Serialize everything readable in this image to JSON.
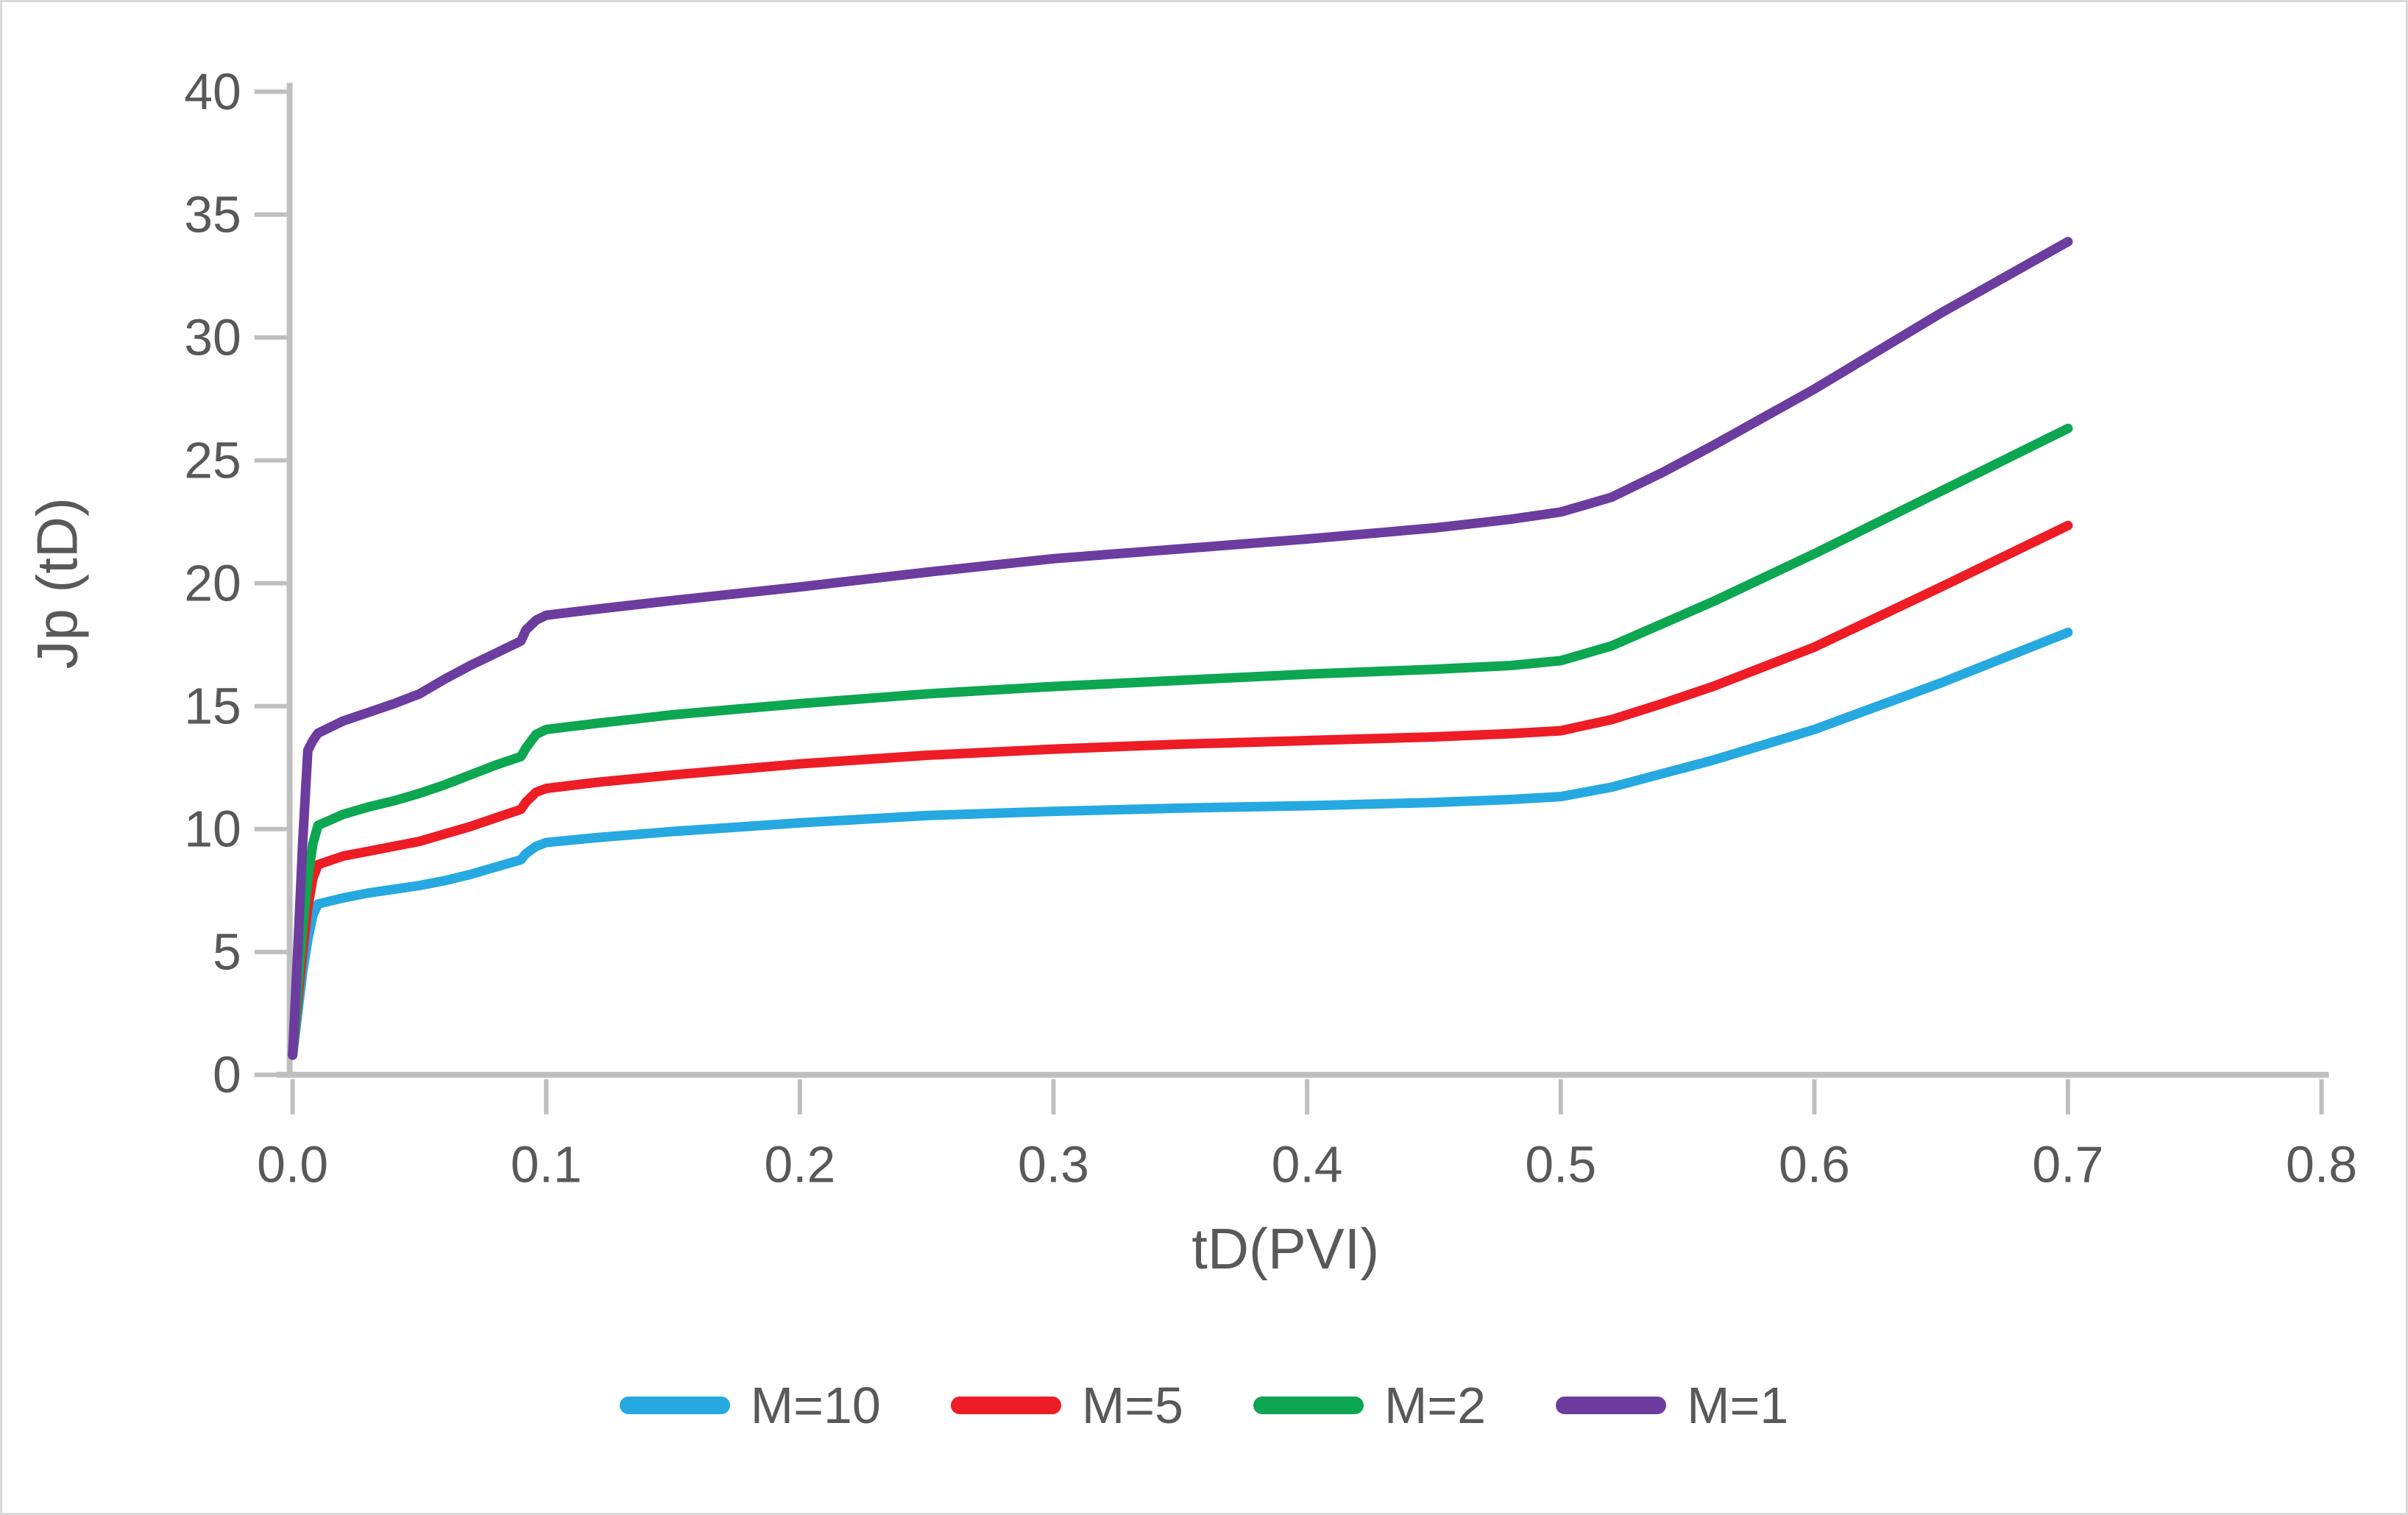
{
  "figure": {
    "background": "#ffffff",
    "border_color": "#d9d9d9"
  },
  "chart_data": {
    "type": "line",
    "title": "",
    "xlabel": "tD(PVI)",
    "ylabel": "Jp (tD)",
    "xlim": [
      0,
      0.8
    ],
    "ylim": [
      0,
      40
    ],
    "x_ticks": [
      0,
      0.1,
      0.2,
      0.3,
      0.4,
      0.5,
      0.6,
      0.7,
      0.8
    ],
    "x_tick_labels": [
      "0.0",
      "0.1",
      "0.2",
      "0.3",
      "0.4",
      "0.5",
      "0.6",
      "0.7",
      "0.8"
    ],
    "y_ticks": [
      0,
      5,
      10,
      15,
      20,
      25,
      30,
      35,
      40
    ],
    "y_tick_labels": [
      "0",
      "5",
      "10",
      "15",
      "20",
      "25",
      "30",
      "35",
      "40"
    ],
    "grid": false,
    "legend_position": "bottom",
    "axis_color": "#bfbfbf",
    "text_color": "#595959",
    "line_width": 13,
    "series": [
      {
        "name": "M=10",
        "color": "#25a9e0",
        "points": [
          [
            0,
            0.8
          ],
          [
            0.002,
            2.5
          ],
          [
            0.004,
            4.2
          ],
          [
            0.006,
            5.5
          ],
          [
            0.008,
            6.5
          ],
          [
            0.01,
            6.95
          ],
          [
            0.02,
            7.2
          ],
          [
            0.03,
            7.4
          ],
          [
            0.04,
            7.55
          ],
          [
            0.05,
            7.7
          ],
          [
            0.06,
            7.9
          ],
          [
            0.07,
            8.15
          ],
          [
            0.08,
            8.45
          ],
          [
            0.09,
            8.75
          ],
          [
            0.092,
            9.0
          ],
          [
            0.096,
            9.3
          ],
          [
            0.1,
            9.45
          ],
          [
            0.12,
            9.65
          ],
          [
            0.15,
            9.9
          ],
          [
            0.2,
            10.25
          ],
          [
            0.25,
            10.55
          ],
          [
            0.3,
            10.72
          ],
          [
            0.35,
            10.85
          ],
          [
            0.4,
            10.95
          ],
          [
            0.45,
            11.08
          ],
          [
            0.48,
            11.2
          ],
          [
            0.5,
            11.32
          ],
          [
            0.52,
            11.7
          ],
          [
            0.54,
            12.25
          ],
          [
            0.56,
            12.8
          ],
          [
            0.6,
            14.05
          ],
          [
            0.65,
            15.95
          ],
          [
            0.7,
            18.0
          ]
        ]
      },
      {
        "name": "M=5",
        "color": "#ee1c25",
        "points": [
          [
            0,
            0.8
          ],
          [
            0.002,
            3.0
          ],
          [
            0.004,
            5.0
          ],
          [
            0.006,
            6.8
          ],
          [
            0.008,
            8.0
          ],
          [
            0.01,
            8.55
          ],
          [
            0.02,
            8.9
          ],
          [
            0.03,
            9.1
          ],
          [
            0.04,
            9.3
          ],
          [
            0.05,
            9.5
          ],
          [
            0.06,
            9.8
          ],
          [
            0.07,
            10.1
          ],
          [
            0.08,
            10.45
          ],
          [
            0.09,
            10.8
          ],
          [
            0.092,
            11.1
          ],
          [
            0.096,
            11.5
          ],
          [
            0.1,
            11.65
          ],
          [
            0.12,
            11.9
          ],
          [
            0.15,
            12.2
          ],
          [
            0.2,
            12.65
          ],
          [
            0.25,
            13.0
          ],
          [
            0.3,
            13.25
          ],
          [
            0.35,
            13.45
          ],
          [
            0.4,
            13.6
          ],
          [
            0.45,
            13.75
          ],
          [
            0.48,
            13.88
          ],
          [
            0.5,
            14.0
          ],
          [
            0.52,
            14.45
          ],
          [
            0.54,
            15.1
          ],
          [
            0.56,
            15.8
          ],
          [
            0.6,
            17.4
          ],
          [
            0.65,
            19.85
          ],
          [
            0.7,
            22.35
          ]
        ]
      },
      {
        "name": "M=2",
        "color": "#0ca750",
        "points": [
          [
            0,
            0.8
          ],
          [
            0.002,
            3.5
          ],
          [
            0.004,
            6.0
          ],
          [
            0.006,
            8.0
          ],
          [
            0.008,
            9.4
          ],
          [
            0.01,
            10.15
          ],
          [
            0.02,
            10.6
          ],
          [
            0.03,
            10.9
          ],
          [
            0.04,
            11.15
          ],
          [
            0.05,
            11.45
          ],
          [
            0.06,
            11.8
          ],
          [
            0.07,
            12.2
          ],
          [
            0.08,
            12.6
          ],
          [
            0.09,
            12.95
          ],
          [
            0.092,
            13.3
          ],
          [
            0.096,
            13.85
          ],
          [
            0.1,
            14.05
          ],
          [
            0.12,
            14.3
          ],
          [
            0.15,
            14.65
          ],
          [
            0.2,
            15.1
          ],
          [
            0.25,
            15.5
          ],
          [
            0.3,
            15.8
          ],
          [
            0.35,
            16.05
          ],
          [
            0.4,
            16.3
          ],
          [
            0.45,
            16.5
          ],
          [
            0.48,
            16.65
          ],
          [
            0.5,
            16.85
          ],
          [
            0.52,
            17.45
          ],
          [
            0.54,
            18.35
          ],
          [
            0.56,
            19.25
          ],
          [
            0.6,
            21.2
          ],
          [
            0.65,
            23.75
          ],
          [
            0.7,
            26.3
          ]
        ]
      },
      {
        "name": "M=1",
        "color": "#6c3c9f",
        "points": [
          [
            0,
            0.8
          ],
          [
            0.002,
            5.0
          ],
          [
            0.004,
            9.5
          ],
          [
            0.006,
            13.2
          ],
          [
            0.008,
            13.6
          ],
          [
            0.01,
            13.9
          ],
          [
            0.02,
            14.4
          ],
          [
            0.03,
            14.75
          ],
          [
            0.04,
            15.1
          ],
          [
            0.05,
            15.5
          ],
          [
            0.06,
            16.1
          ],
          [
            0.07,
            16.65
          ],
          [
            0.08,
            17.15
          ],
          [
            0.09,
            17.65
          ],
          [
            0.092,
            18.1
          ],
          [
            0.096,
            18.5
          ],
          [
            0.1,
            18.7
          ],
          [
            0.12,
            18.95
          ],
          [
            0.15,
            19.3
          ],
          [
            0.2,
            19.85
          ],
          [
            0.25,
            20.45
          ],
          [
            0.3,
            21.0
          ],
          [
            0.35,
            21.4
          ],
          [
            0.4,
            21.8
          ],
          [
            0.45,
            22.25
          ],
          [
            0.48,
            22.6
          ],
          [
            0.5,
            22.9
          ],
          [
            0.52,
            23.5
          ],
          [
            0.54,
            24.5
          ],
          [
            0.56,
            25.6
          ],
          [
            0.6,
            27.9
          ],
          [
            0.65,
            31.0
          ],
          [
            0.7,
            33.9
          ]
        ]
      }
    ]
  }
}
